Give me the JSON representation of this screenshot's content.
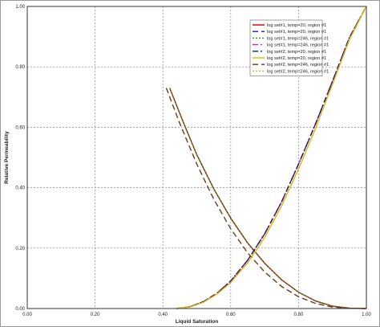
{
  "chart_data": {
    "type": "line",
    "xlabel": "Liquid Saturation",
    "ylabel": "Relative Permeability",
    "xlim": [
      0,
      1
    ],
    "ylim": [
      0,
      1
    ],
    "x_ticks": [
      "0.00",
      "0.20",
      "0.40",
      "0.60",
      "0.80",
      "1.00"
    ],
    "y_ticks": [
      "0.00",
      "0.20",
      "0.40",
      "0.60",
      "0.80",
      "1.00"
    ],
    "grid": true,
    "legend_position": "top-right",
    "series": [
      {
        "name": "log set#1, temp=20, region #1",
        "color": "#c00000",
        "style": "solid",
        "width": 1.4,
        "x": [
          0.42,
          0.46,
          0.5,
          0.55,
          0.6,
          0.65,
          0.7,
          0.75,
          0.8,
          0.85,
          0.9,
          0.95,
          1.0
        ],
        "y": [
          0.73,
          0.617,
          0.509,
          0.396,
          0.299,
          0.217,
          0.15,
          0.095,
          0.054,
          0.025,
          0.008,
          0.001,
          0.0
        ]
      },
      {
        "name": "log set#1, temp=20, region #1",
        "color": "#1a1ad4",
        "style": "dashed",
        "width": 1.4,
        "x": [
          0.44,
          0.48,
          0.52,
          0.56,
          0.6,
          0.65,
          0.7,
          0.75,
          0.8,
          0.85,
          0.9,
          0.95,
          1.0
        ],
        "y": [
          0.0,
          0.006,
          0.023,
          0.051,
          0.091,
          0.16,
          0.247,
          0.353,
          0.478,
          0.611,
          0.752,
          0.897,
          1.0
        ]
      },
      {
        "name": "log set#1, temp=246, region #1",
        "color": "#2a9a2a",
        "style": "dotted",
        "width": 1.4,
        "x": [
          0.42,
          0.46,
          0.5,
          0.55,
          0.6,
          0.65,
          0.7,
          0.75,
          0.8,
          0.85,
          0.9,
          0.95,
          1.0
        ],
        "y": [
          0.73,
          0.617,
          0.509,
          0.396,
          0.299,
          0.217,
          0.15,
          0.095,
          0.054,
          0.025,
          0.008,
          0.001,
          0.0
        ]
      },
      {
        "name": "log set#1, temp=246, region #1",
        "color": "#cc22cc",
        "style": "dashdot",
        "width": 1.4,
        "x": [
          0.44,
          0.48,
          0.52,
          0.56,
          0.6,
          0.65,
          0.7,
          0.75,
          0.8,
          0.85,
          0.9,
          0.95,
          1.0
        ],
        "y": [
          0.0,
          0.006,
          0.023,
          0.051,
          0.091,
          0.16,
          0.247,
          0.353,
          0.478,
          0.611,
          0.752,
          0.897,
          1.0
        ]
      },
      {
        "name": "log set#2, temp=20, region #1",
        "color": "#1a1a7a",
        "style": "dashdot",
        "width": 1.4,
        "x": [
          0.44,
          0.48,
          0.52,
          0.56,
          0.6,
          0.65,
          0.7,
          0.75,
          0.8,
          0.85,
          0.9,
          0.95,
          1.0
        ],
        "y": [
          0.0,
          0.006,
          0.023,
          0.051,
          0.091,
          0.16,
          0.247,
          0.353,
          0.478,
          0.611,
          0.752,
          0.897,
          1.0
        ]
      },
      {
        "name": "log set#2, temp=20, region #1",
        "color": "#e8b800",
        "style": "solid",
        "width": 1.4,
        "x": [
          0.44,
          0.48,
          0.52,
          0.56,
          0.6,
          0.65,
          0.7,
          0.75,
          0.8,
          0.85,
          0.9,
          0.95,
          1.0
        ],
        "y": [
          0.0,
          0.005,
          0.021,
          0.048,
          0.086,
          0.151,
          0.235,
          0.34,
          0.462,
          0.596,
          0.742,
          0.89,
          1.0
        ]
      },
      {
        "name": "log set#2, temp=246, region #1",
        "color": "#6b3a1a",
        "style": "dashed",
        "width": 1.4,
        "x": [
          0.41,
          0.45,
          0.5,
          0.55,
          0.6,
          0.65,
          0.7,
          0.75,
          0.8,
          0.85,
          0.9,
          0.95,
          1.0
        ],
        "y": [
          0.73,
          0.612,
          0.478,
          0.362,
          0.264,
          0.184,
          0.121,
          0.073,
          0.039,
          0.017,
          0.005,
          0.001,
          0.0
        ]
      },
      {
        "name": "log set#2, temp=246, region #1",
        "color": "#e8b800",
        "style": "dotted",
        "width": 1.4,
        "x": [
          0.44,
          0.48,
          0.52,
          0.56,
          0.6,
          0.65,
          0.7,
          0.75,
          0.8,
          0.85,
          0.9,
          0.95,
          1.0
        ],
        "y": [
          0.0,
          0.005,
          0.021,
          0.048,
          0.086,
          0.151,
          0.235,
          0.34,
          0.462,
          0.596,
          0.742,
          0.89,
          1.0
        ]
      }
    ]
  }
}
